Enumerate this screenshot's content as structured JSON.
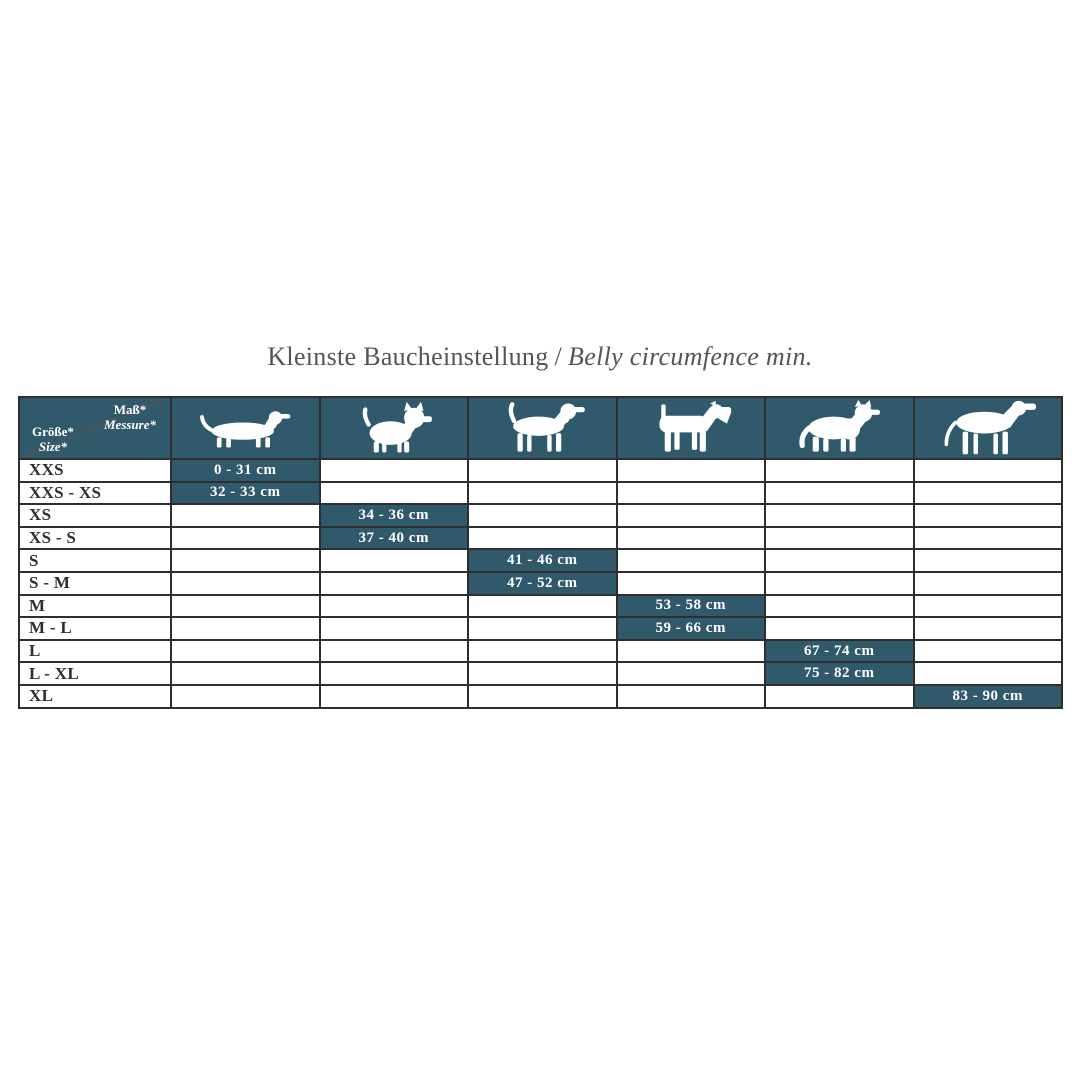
{
  "title": {
    "german": "Kleinste Baucheinstellung",
    "separator": "/",
    "english": "Belly circumfence min."
  },
  "table": {
    "corner": {
      "measure_de": "Maß*",
      "measure_en": "Messure*",
      "size_de": "Größe*",
      "size_en": "Size*"
    },
    "columns": [
      {
        "icon": "dachshund-icon"
      },
      {
        "icon": "yorkshire-terrier-icon"
      },
      {
        "icon": "medium-dog-icon"
      },
      {
        "icon": "airedale-terrier-icon"
      },
      {
        "icon": "husky-icon"
      },
      {
        "icon": "great-dane-icon"
      }
    ],
    "rows": [
      {
        "size": "XXS",
        "col": 0,
        "value": "0 - 31 cm"
      },
      {
        "size": "XXS - XS",
        "col": 0,
        "value": "32 - 33 cm"
      },
      {
        "size": "XS",
        "col": 1,
        "value": "34 - 36 cm"
      },
      {
        "size": "XS - S",
        "col": 1,
        "value": "37 - 40 cm"
      },
      {
        "size": "S",
        "col": 2,
        "value": "41 - 46 cm"
      },
      {
        "size": "S - M",
        "col": 2,
        "value": "47 - 52 cm"
      },
      {
        "size": "M",
        "col": 3,
        "value": "53 - 58 cm"
      },
      {
        "size": "M - L",
        "col": 3,
        "value": "59 - 66 cm"
      },
      {
        "size": "L",
        "col": 4,
        "value": "67 - 74 cm"
      },
      {
        "size": "L - XL",
        "col": 4,
        "value": "75 - 82 cm"
      },
      {
        "size": "XL",
        "col": 5,
        "value": "83 - 90 cm"
      }
    ]
  },
  "colors": {
    "teal": "#305a6c",
    "border": "#2e2e2e",
    "label_text": "#2c3034",
    "title_text": "#545454",
    "diagonal": "#46555c",
    "value_text": "#ffffff"
  }
}
